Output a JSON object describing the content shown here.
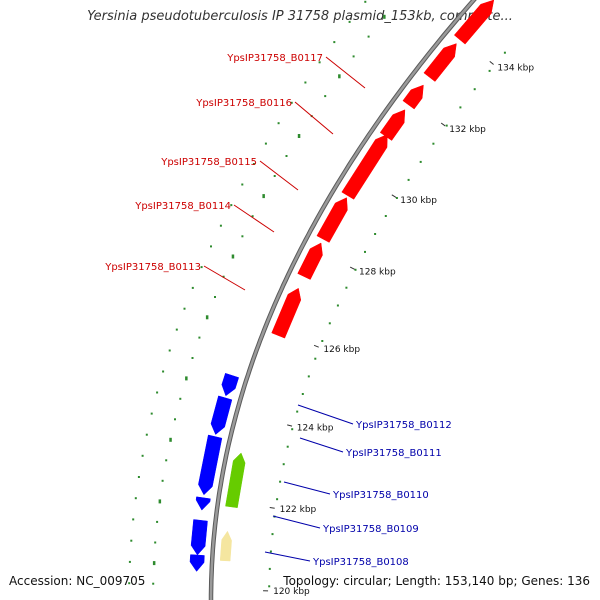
{
  "title": "Yersinia pseudotuberculosis IP 31758 plasmid_153kb, complete...",
  "footer": {
    "accession": "Accession: NC_009705",
    "summary": "Topology: circular; Length: 153,140 bp; Genes: 136"
  },
  "colors": {
    "backbone": "#9a9a9a",
    "forward_gene": "#ff0000",
    "reverse_gene": "#0000ff",
    "rna_gene": "#66cc00",
    "misc_feature": "#f5e6a0",
    "gc_dots": "#2e8b2e",
    "forward_label": "#cc0000",
    "reverse_label": "#0000aa"
  },
  "ticks": [
    {
      "label": "134 kbp"
    },
    {
      "label": "132 kbp"
    },
    {
      "label": "130 kbp"
    },
    {
      "label": "128 kbp"
    },
    {
      "label": "126 kbp"
    },
    {
      "label": "124 kbp"
    },
    {
      "label": "122 kbp"
    },
    {
      "label": "120 kbp"
    }
  ],
  "gene_labels": [
    {
      "name": "YpsIP31758_B0117",
      "strand": "forward"
    },
    {
      "name": "YpsIP31758_B0116",
      "strand": "forward"
    },
    {
      "name": "YpsIP31758_B0115",
      "strand": "forward"
    },
    {
      "name": "YpsIP31758_B0114",
      "strand": "forward"
    },
    {
      "name": "YpsIP31758_B0113",
      "strand": "forward"
    },
    {
      "name": "YpsIP31758_B0112",
      "strand": "reverse"
    },
    {
      "name": "YpsIP31758_B0111",
      "strand": "reverse"
    },
    {
      "name": "YpsIP31758_B0110",
      "strand": "reverse"
    },
    {
      "name": "YpsIP31758_B0109",
      "strand": "reverse"
    },
    {
      "name": "YpsIP31758_B0108",
      "strand": "reverse"
    }
  ]
}
